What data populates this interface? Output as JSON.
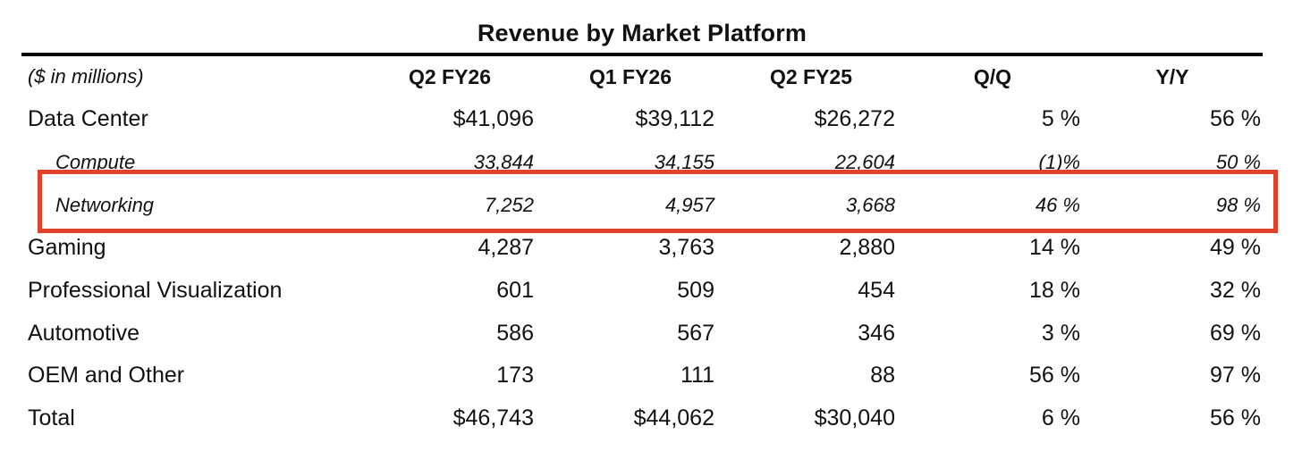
{
  "table": {
    "title": "Revenue by Market Platform",
    "unit_label": "($ in millions)",
    "columns": [
      "Q2 FY26",
      "Q1 FY26",
      "Q2 FY25",
      "Q/Q",
      "Y/Y"
    ],
    "rows": [
      {
        "label": "Data Center",
        "values": [
          "$41,096",
          "$39,112",
          "$26,272",
          "5 %",
          "56 %"
        ]
      },
      {
        "label": "Compute",
        "values": [
          "33,844",
          "34,155",
          "22,604",
          "(1)%",
          "50 %"
        ]
      },
      {
        "label": "Networking",
        "values": [
          "7,252",
          "4,957",
          "3,668",
          "46 %",
          "98 %"
        ]
      },
      {
        "label": "Gaming",
        "values": [
          "4,287",
          "3,763",
          "2,880",
          "14 %",
          "49 %"
        ]
      },
      {
        "label": "Professional Visualization",
        "values": [
          "601",
          "509",
          "454",
          "18 %",
          "32 %"
        ]
      },
      {
        "label": "Automotive",
        "values": [
          "586",
          "567",
          "346",
          "3 %",
          "69 %"
        ]
      },
      {
        "label": "OEM and Other",
        "values": [
          "173",
          "111",
          "88",
          "56 %",
          "97 %"
        ]
      },
      {
        "label": "Total",
        "values": [
          "$46,743",
          "$44,062",
          "$30,040",
          "6 %",
          "56 %"
        ]
      }
    ]
  },
  "highlight": {
    "row_label": "Networking",
    "color": "#e2412a"
  }
}
